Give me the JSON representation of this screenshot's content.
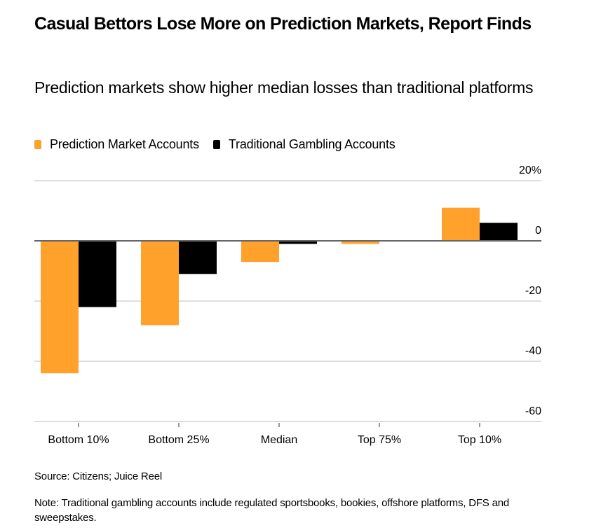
{
  "header": {
    "title": "Casual Bettors Lose More on Prediction Markets, Report Finds",
    "subtitle": "Prediction markets show higher median losses than traditional platforms"
  },
  "legend": [
    {
      "label": "Prediction Market Accounts",
      "color": "#FFA12B"
    },
    {
      "label": "Traditional Gambling Accounts",
      "color": "#000000"
    }
  ],
  "footer": {
    "source": "Source: Citizens; Juice Reel",
    "note": "Note: Traditional gambling accounts include regulated sportsbooks, bookies, offshore platforms, DFS and sweepstakes."
  },
  "chart_data": {
    "type": "bar",
    "title": "Casual Bettors Lose More on Prediction Markets, Report Finds",
    "subtitle": "Prediction markets show higher median losses than traditional platforms",
    "xlabel": "",
    "ylabel": "",
    "categories": [
      "Bottom 10%",
      "Bottom 25%",
      "Median",
      "Top 75%",
      "Top 10%"
    ],
    "series": [
      {
        "name": "Prediction Market Accounts",
        "color": "#FFA12B",
        "values": [
          -44,
          -28,
          -7,
          -1,
          11
        ]
      },
      {
        "name": "Traditional Gambling Accounts",
        "color": "#000000",
        "values": [
          -22,
          -11,
          -1,
          0,
          6
        ]
      }
    ],
    "ylim": [
      -60,
      20
    ],
    "yticks": [
      20,
      0,
      -20,
      -40,
      -60
    ],
    "ytick_labels": [
      "20%",
      "0",
      "-20",
      "-40",
      "-60"
    ],
    "y_axis_position": "right",
    "grid": true,
    "legend_position": "top-left",
    "zero_line_color": "#666666",
    "grid_color": "#DDDDDD"
  }
}
